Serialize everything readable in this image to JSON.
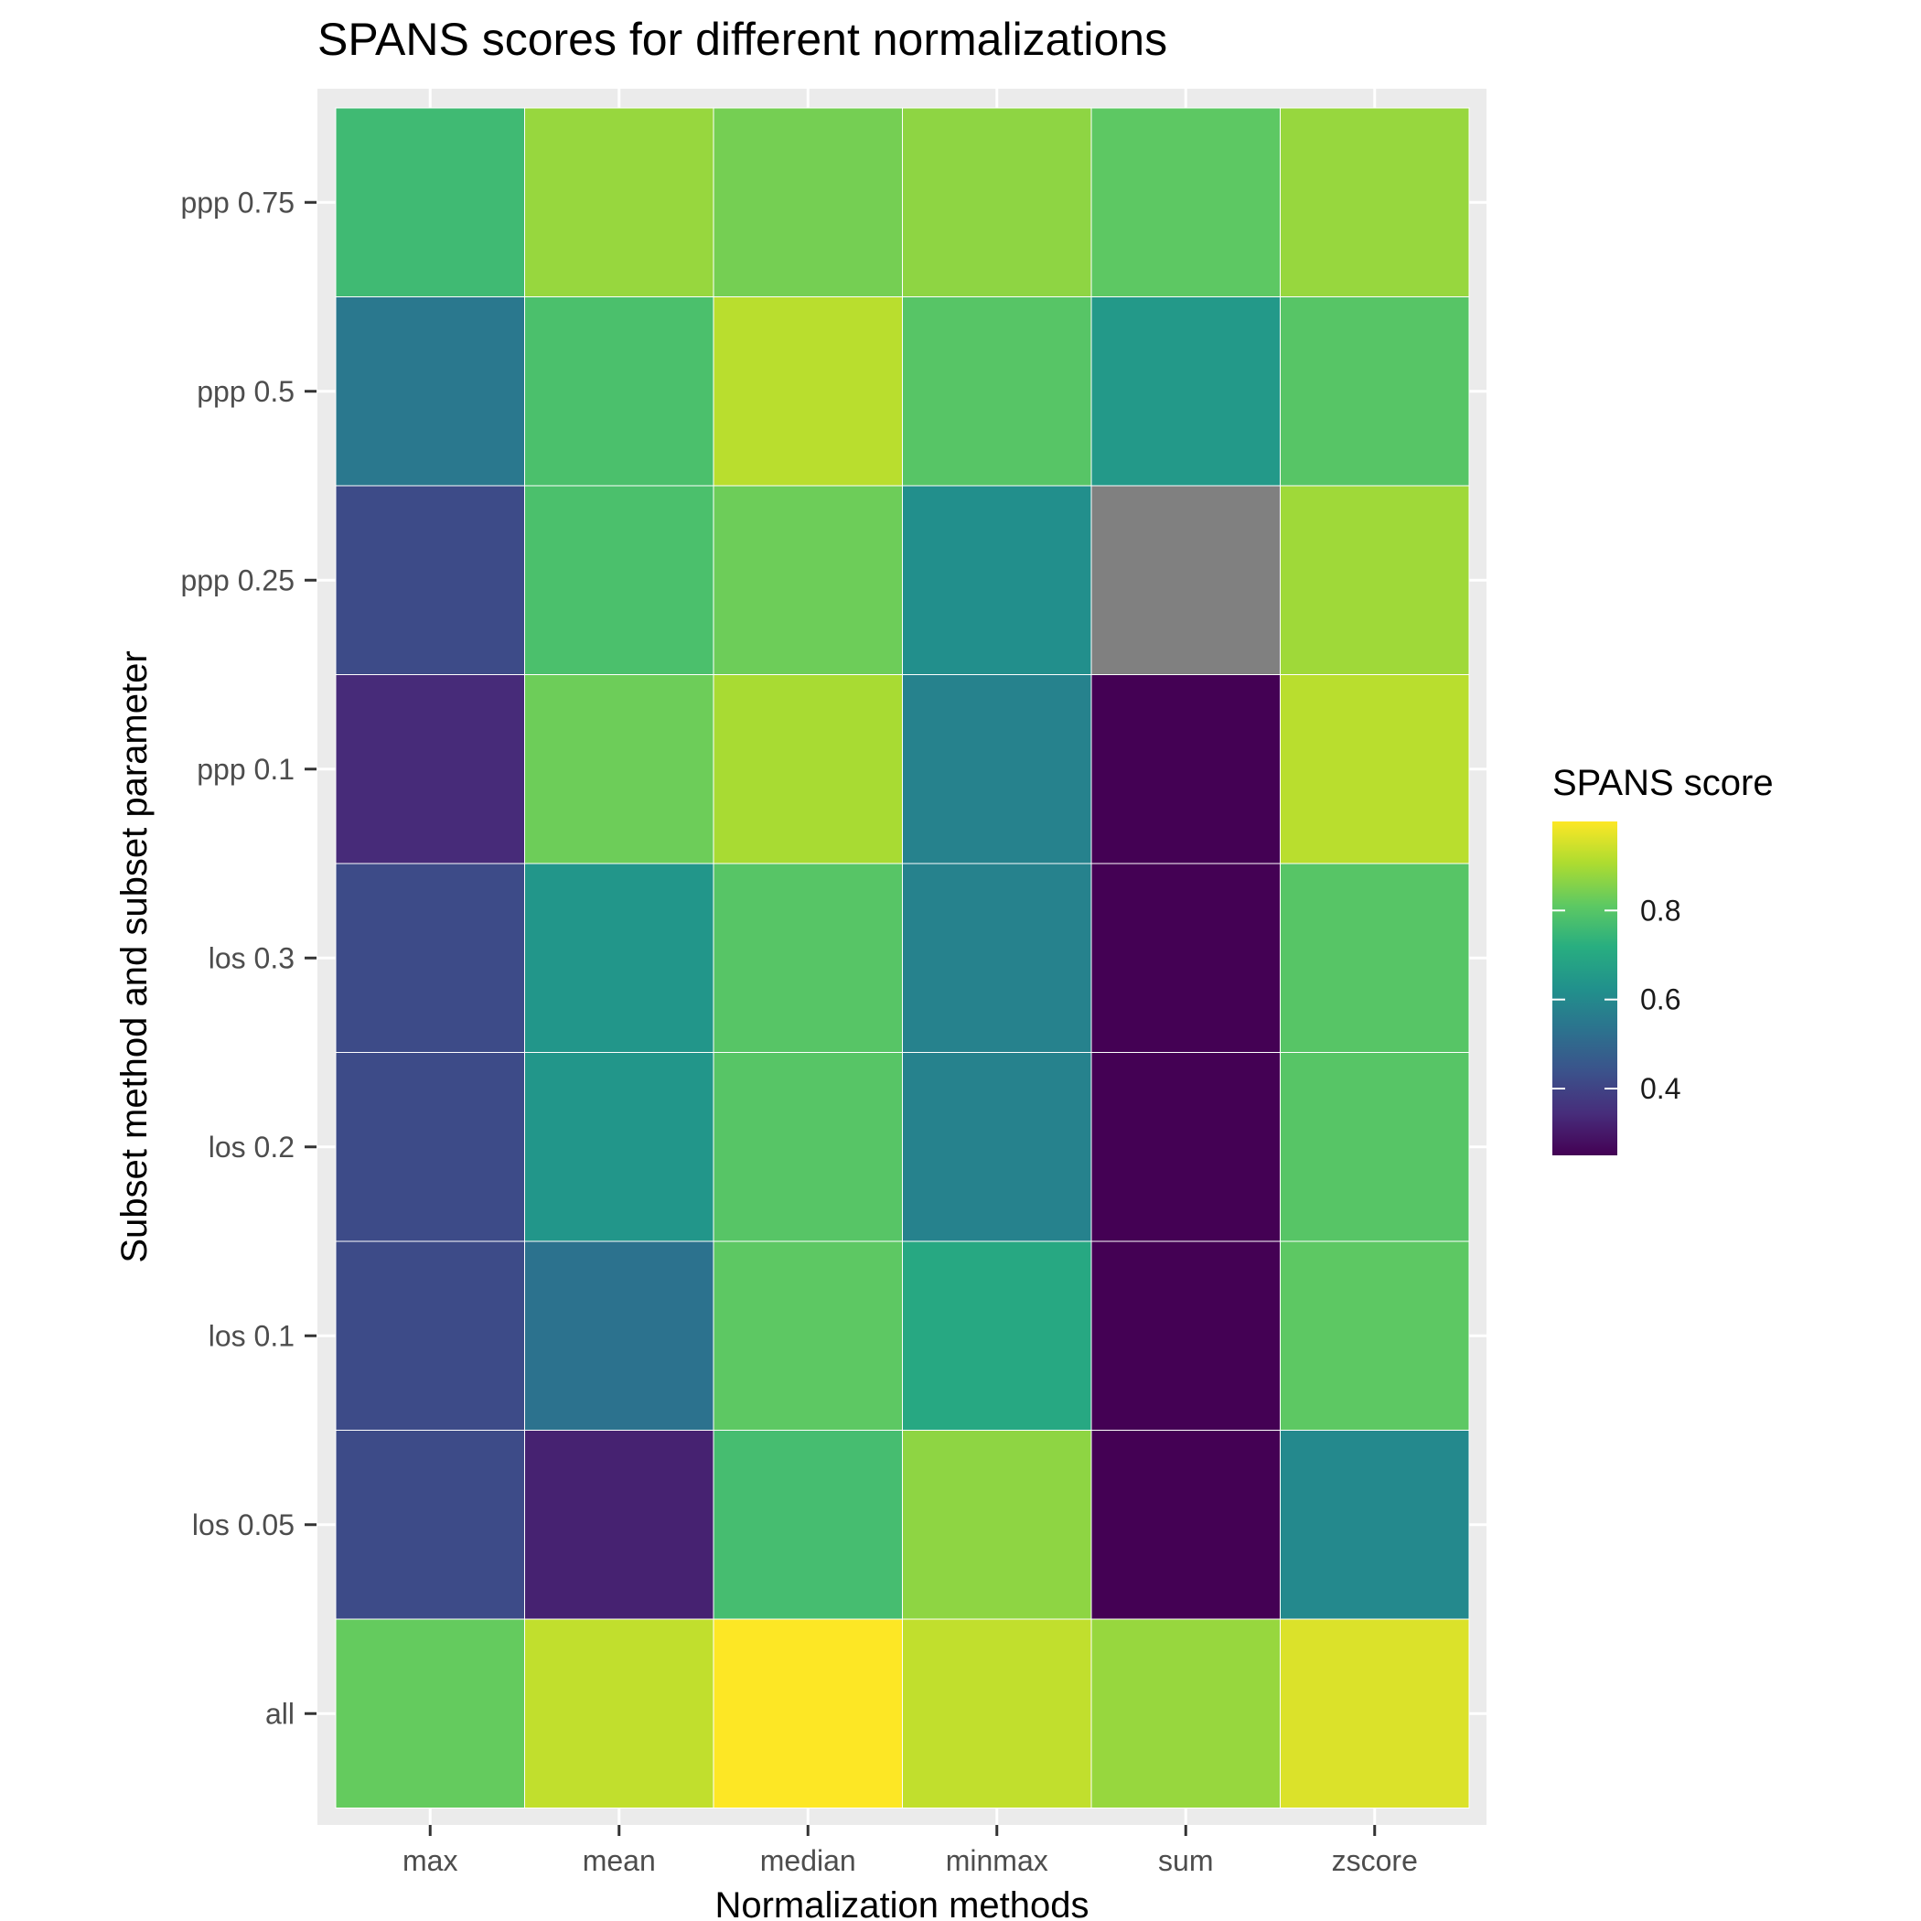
{
  "chart_data": {
    "type": "heatmap",
    "title": "SPANS scores for different normalizations",
    "xlabel": "Normalization methods",
    "ylabel": "Subset method and subset parameter",
    "x_categories": [
      "max",
      "mean",
      "median",
      "minmax",
      "sum",
      "zscore"
    ],
    "y_categories": [
      "all",
      "los 0.05",
      "los 0.1",
      "los 0.2",
      "los 0.3",
      "ppp 0.1",
      "ppp 0.25",
      "ppp 0.5",
      "ppp 0.75"
    ],
    "values": [
      [
        0.82,
        0.93,
        1.0,
        0.93,
        0.88,
        0.96
      ],
      [
        0.42,
        0.32,
        0.77,
        0.87,
        0.25,
        0.6
      ],
      [
        0.42,
        0.53,
        0.81,
        0.7,
        0.25,
        0.81
      ],
      [
        0.42,
        0.64,
        0.8,
        0.58,
        0.25,
        0.8
      ],
      [
        0.42,
        0.64,
        0.8,
        0.58,
        0.25,
        0.8
      ],
      [
        0.34,
        0.83,
        0.9,
        0.58,
        0.25,
        0.92
      ],
      [
        0.42,
        0.78,
        0.83,
        0.62,
        null,
        0.89
      ],
      [
        0.55,
        0.78,
        0.92,
        0.8,
        0.65,
        0.8
      ],
      [
        0.76,
        0.88,
        0.84,
        0.87,
        0.81,
        0.88
      ]
    ],
    "color_scale": "viridis",
    "na_color": "#808080",
    "value_range": [
      0.25,
      1.0
    ],
    "grid": true,
    "legend": {
      "title": "SPANS score",
      "ticks": [
        0.4,
        0.6,
        0.8
      ],
      "tick_labels": [
        "0.4",
        "0.6",
        "0.8"
      ],
      "placement": "right"
    }
  }
}
